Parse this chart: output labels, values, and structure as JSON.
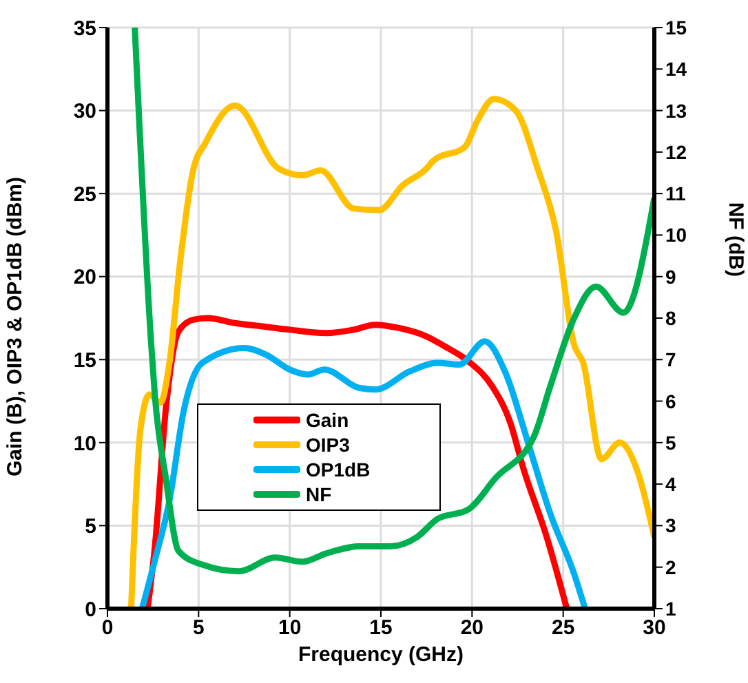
{
  "chart_data": {
    "type": "line",
    "xlabel": "Frequency (GHz)",
    "ylabel": "Gain (B), OIP3 & OP1dB (dBm)",
    "y2label": "NF (dB)",
    "xlim": [
      0,
      30
    ],
    "xticks": [
      0,
      5,
      10,
      15,
      20,
      25,
      30
    ],
    "ylim": [
      0,
      35
    ],
    "yticks": [
      0,
      5,
      10,
      15,
      20,
      25,
      30,
      35
    ],
    "y2lim": [
      1,
      15
    ],
    "y2ticks": [
      1,
      2,
      3,
      4,
      5,
      6,
      7,
      8,
      9,
      10,
      11,
      12,
      13,
      14,
      15
    ],
    "grid": true,
    "legend": "bottom left",
    "marker": "none",
    "line_style": "solid",
    "series": [
      {
        "name": "Gain",
        "color": "#ff0000",
        "x": [
          2.2,
          2.6,
          3.2,
          3.9,
          4.7,
          5.5,
          7,
          8.5,
          10,
          12,
          13.5,
          14.7,
          16,
          17.5,
          18.5,
          19.8,
          21.1,
          22.1,
          22.8,
          24.1,
          25.2
        ],
        "values": [
          0,
          3.7,
          12,
          16.7,
          17.4,
          17.5,
          17.2,
          17,
          16.8,
          16.6,
          16.8,
          17.1,
          16.9,
          16.4,
          15.8,
          14.9,
          13.4,
          11.2,
          8.5,
          4.3,
          0
        ]
      },
      {
        "name": "OIP3",
        "color": "#ffc000",
        "x": [
          1.3,
          1.8,
          2.3,
          2.9,
          3.4,
          4,
          4.7,
          5.4,
          7,
          9.4,
          10.7,
          11.7,
          13.5,
          14.9,
          16.2,
          17.5,
          17.9,
          19.6,
          20.3,
          21.2,
          22.4,
          23.6,
          24.6,
          25.6,
          26.1,
          27.1,
          28.1,
          29.1,
          30
        ],
        "values": [
          0,
          10.7,
          12.9,
          12.4,
          14.8,
          21,
          26.4,
          28.1,
          30.3,
          26.5,
          26.1,
          26.4,
          24.1,
          24,
          25.5,
          26.5,
          27,
          27.8,
          29.4,
          30.7,
          30,
          26.5,
          22.8,
          15.9,
          14.8,
          9,
          10,
          8.2,
          4.3
        ]
      },
      {
        "name": "OP1dB",
        "color": "#00b0f0",
        "x": [
          1.9,
          2.6,
          3.4,
          4.2,
          5.2,
          7.5,
          8.7,
          10,
          11,
          11.9,
          13.8,
          14.7,
          16.6,
          18.1,
          19.3,
          20.7,
          21.8,
          23.1,
          24.3,
          25.6,
          26.2
        ],
        "values": [
          0,
          2.9,
          6.5,
          12,
          14.8,
          15.7,
          15.3,
          14.4,
          14.1,
          14.4,
          13.3,
          13.2,
          14.3,
          14.8,
          14.7,
          16.1,
          14.3,
          9.9,
          5.7,
          2.1,
          0
        ]
      },
      {
        "name": "NF",
        "color": "#00b050",
        "axis": "y2",
        "x": [
          1.5,
          2.4,
          2.6,
          3.2,
          3.9,
          5.2,
          7.2,
          9.2,
          10.7,
          12,
          13.8,
          15.5,
          17,
          18.1,
          19.8,
          21.3,
          23.4,
          24.3,
          25.6,
          26.8,
          28.3,
          30
        ],
        "values": [
          15,
          7.37,
          6.14,
          4.15,
          2.39,
          2.06,
          1.9,
          2.23,
          2.13,
          2.33,
          2.5,
          2.5,
          2.73,
          3.16,
          3.39,
          4.15,
          5.15,
          6.37,
          8,
          8.76,
          8.13,
          10.9
        ]
      }
    ]
  }
}
